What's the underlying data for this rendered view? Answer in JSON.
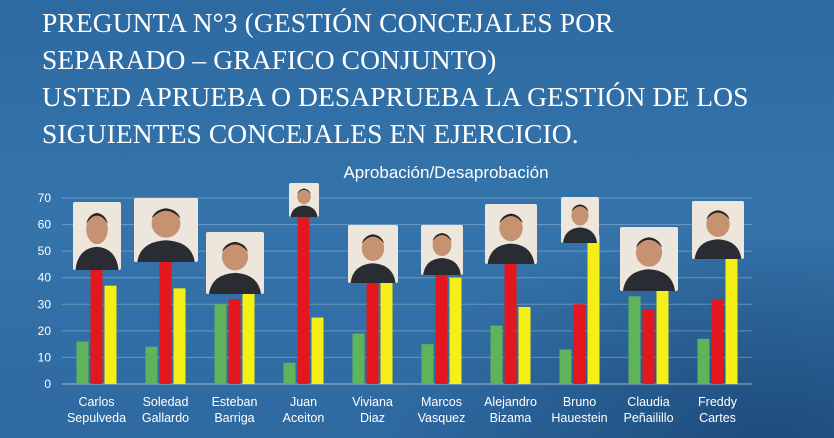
{
  "title_lines": [
    "PREGUNTA N°3 (GESTIÓN CONCEJALES POR",
    "SEPARADO – GRAFICO CONJUNTO)",
    "USTED APRUEBA O DESAPRUEBA LA GESTIÓN DE LOS",
    "SIGUIENTES CONCEJALES EN EJERCICIO."
  ],
  "colors": {
    "background": "#2f6da4",
    "green": "#5fb35a",
    "red": "#e3171d",
    "yellow": "#f6ee17",
    "text": "#ffffff"
  },
  "chart_data": {
    "type": "bar",
    "title": "Aprobación/Desaprobación",
    "xlabel": "",
    "ylabel": "",
    "ylim": [
      0,
      70
    ],
    "yticks": [
      0,
      10,
      20,
      30,
      40,
      50,
      60,
      70
    ],
    "grid": true,
    "legend": "none",
    "categories": [
      [
        "Carlos",
        "Sepulveda"
      ],
      [
        "Soledad",
        "Gallardo"
      ],
      [
        "Esteban",
        "Barriga"
      ],
      [
        "Juan",
        "Aceiton"
      ],
      [
        "Viviana",
        "Diaz"
      ],
      [
        "Marcos",
        "Vasquez"
      ],
      [
        "Alejandro",
        "Bizama"
      ],
      [
        "Bruno",
        "Hauestein"
      ],
      [
        "Claudia",
        "Peñailillo"
      ],
      [
        "Freddy",
        "Cartes"
      ]
    ],
    "series": [
      {
        "color": "#5fb35a",
        "values": [
          16,
          14,
          30,
          8,
          19,
          15,
          22,
          13,
          33,
          17
        ]
      },
      {
        "color": "#e3171d",
        "values": [
          46,
          49,
          32,
          66,
          39,
          44,
          48,
          30,
          28,
          32
        ]
      },
      {
        "color": "#f6ee17",
        "values": [
          37,
          36,
          37,
          25,
          41,
          40,
          29,
          56,
          38,
          50
        ]
      }
    ]
  }
}
